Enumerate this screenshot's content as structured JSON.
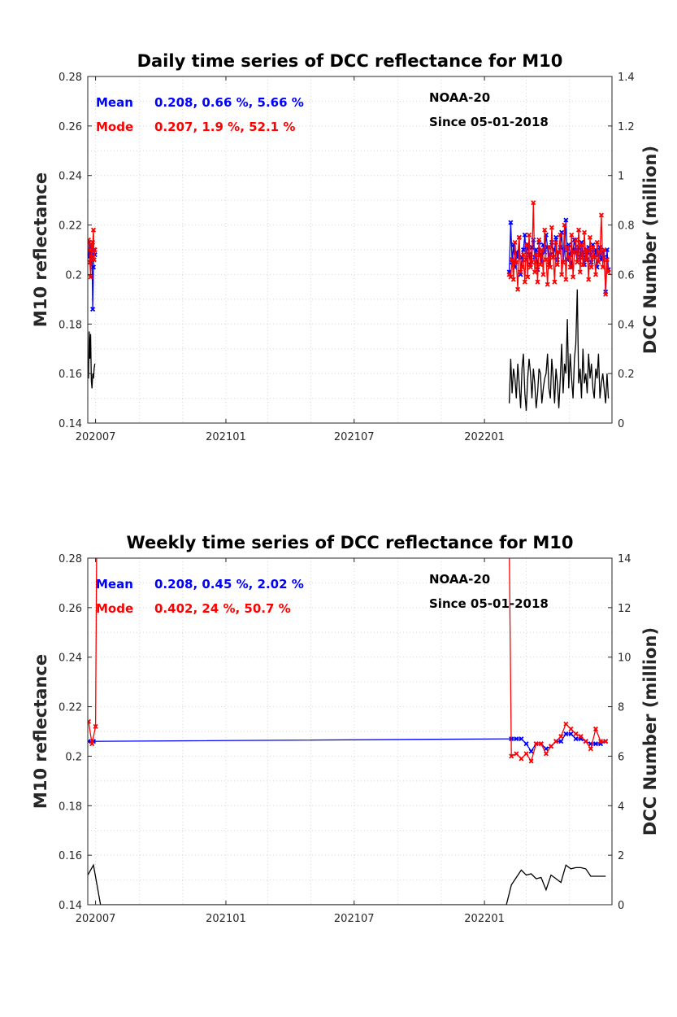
{
  "colors": {
    "mean": "#0000ff",
    "mode": "#ff0000",
    "count": "#000000"
  },
  "chart_data": [
    {
      "type": "line",
      "title": "Daily time series of DCC reflectance for M10",
      "ylabel": "M10 reflectance",
      "y2label": "DCC Number (million)",
      "x_tick_labels": [
        "202007",
        "202101",
        "202107",
        "202201"
      ],
      "x_tick_dates": [
        "2020-07-01",
        "2021-01-01",
        "2021-07-01",
        "2022-01-01"
      ],
      "xlim": [
        "2020-06-20",
        "2022-06-30"
      ],
      "ylim": [
        0.14,
        0.28
      ],
      "y_ticks": [
        0.14,
        0.16,
        0.18,
        0.2,
        0.22,
        0.24,
        0.26,
        0.28
      ],
      "y_tick_labels": [
        "0.14",
        "0.16",
        "0.18",
        "0.2",
        "0.22",
        "0.24",
        "0.26",
        "0.28"
      ],
      "y2lim": [
        0,
        1.4
      ],
      "y2_ticks": [
        0,
        0.2,
        0.4,
        0.6,
        0.8,
        1,
        1.2,
        1.4
      ],
      "y2_tick_labels": [
        "0",
        "0.2",
        "0.4",
        "0.6",
        "0.8",
        "1",
        "1.2",
        "1.4"
      ],
      "grid": true,
      "annotations": {
        "mean_label": "Mean",
        "mean_values": "0.208, 0.66 %, 5.66 %",
        "mode_label": "Mode",
        "mode_values": "0.207, 1.9 %, 52.1 %",
        "satellite": "NOAA-20",
        "since": "Since 05-01-2018"
      },
      "series": [
        {
          "name": "Mean",
          "axis": "left",
          "x": [
            "2020-06-21",
            "2020-06-22",
            "2020-06-23",
            "2020-06-24",
            "2020-06-25",
            "2020-06-26",
            "2020-06-27",
            "2020-06-28",
            "2020-06-29",
            "2020-06-30",
            "2022-02-05",
            "2022-02-07",
            "2022-02-09",
            "2022-02-11",
            "2022-02-13",
            "2022-02-15",
            "2022-02-17",
            "2022-02-19",
            "2022-02-21",
            "2022-02-23",
            "2022-02-25",
            "2022-02-27",
            "2022-03-01",
            "2022-03-03",
            "2022-03-05",
            "2022-03-07",
            "2022-03-09",
            "2022-03-11",
            "2022-03-13",
            "2022-03-15",
            "2022-03-17",
            "2022-03-19",
            "2022-03-21",
            "2022-03-23",
            "2022-03-25",
            "2022-03-27",
            "2022-03-29",
            "2022-03-31",
            "2022-04-02",
            "2022-04-04",
            "2022-04-06",
            "2022-04-08",
            "2022-04-10",
            "2022-04-12",
            "2022-04-14",
            "2022-04-16",
            "2022-04-18",
            "2022-04-20",
            "2022-04-22",
            "2022-04-24",
            "2022-04-26",
            "2022-04-28",
            "2022-04-30",
            "2022-05-02",
            "2022-05-04",
            "2022-05-06",
            "2022-05-08",
            "2022-05-10",
            "2022-05-12",
            "2022-05-14",
            "2022-05-16",
            "2022-05-18",
            "2022-05-20",
            "2022-05-22",
            "2022-05-24",
            "2022-05-26",
            "2022-05-28",
            "2022-05-30",
            "2022-06-01",
            "2022-06-03",
            "2022-06-05",
            "2022-06-07",
            "2022-06-09",
            "2022-06-11",
            "2022-06-13",
            "2022-06-15",
            "2022-06-17",
            "2022-06-19",
            "2022-06-21",
            "2022-06-23",
            "2022-06-25"
          ],
          "values": [
            0.207,
            0.213,
            0.209,
            0.205,
            0.211,
            0.208,
            0.186,
            0.203,
            0.21,
            0.208,
            0.201,
            0.221,
            0.205,
            0.212,
            0.203,
            0.209,
            0.207,
            0.215,
            0.2,
            0.207,
            0.21,
            0.216,
            0.206,
            0.212,
            0.208,
            0.204,
            0.211,
            0.214,
            0.207,
            0.21,
            0.202,
            0.213,
            0.208,
            0.205,
            0.212,
            0.209,
            0.216,
            0.211,
            0.204,
            0.208,
            0.213,
            0.207,
            0.21,
            0.215,
            0.206,
            0.209,
            0.211,
            0.217,
            0.205,
            0.21,
            0.222,
            0.206,
            0.212,
            0.208,
            0.203,
            0.21,
            0.214,
            0.209,
            0.205,
            0.211,
            0.207,
            0.213,
            0.208,
            0.204,
            0.21,
            0.206,
            0.211,
            0.209,
            0.205,
            0.212,
            0.207,
            0.21,
            0.203,
            0.208,
            0.211,
            0.206,
            0.209,
            0.207,
            0.193,
            0.21,
            0.202
          ]
        },
        {
          "name": "Mode",
          "axis": "left",
          "x": [
            "2020-06-21",
            "2020-06-22",
            "2020-06-23",
            "2020-06-24",
            "2020-06-25",
            "2020-06-26",
            "2020-06-27",
            "2020-06-28",
            "2020-06-29",
            "2020-06-30",
            "2022-02-05",
            "2022-02-07",
            "2022-02-09",
            "2022-02-11",
            "2022-02-13",
            "2022-02-15",
            "2022-02-17",
            "2022-02-19",
            "2022-02-21",
            "2022-02-23",
            "2022-02-25",
            "2022-02-27",
            "2022-03-01",
            "2022-03-03",
            "2022-03-05",
            "2022-03-07",
            "2022-03-09",
            "2022-03-11",
            "2022-03-13",
            "2022-03-15",
            "2022-03-17",
            "2022-03-19",
            "2022-03-21",
            "2022-03-23",
            "2022-03-25",
            "2022-03-27",
            "2022-03-29",
            "2022-03-31",
            "2022-04-02",
            "2022-04-04",
            "2022-04-06",
            "2022-04-08",
            "2022-04-10",
            "2022-04-12",
            "2022-04-14",
            "2022-04-16",
            "2022-04-18",
            "2022-04-20",
            "2022-04-22",
            "2022-04-24",
            "2022-04-26",
            "2022-04-28",
            "2022-04-30",
            "2022-05-02",
            "2022-05-04",
            "2022-05-06",
            "2022-05-08",
            "2022-05-10",
            "2022-05-12",
            "2022-05-14",
            "2022-05-16",
            "2022-05-18",
            "2022-05-20",
            "2022-05-22",
            "2022-05-24",
            "2022-05-26",
            "2022-05-28",
            "2022-05-30",
            "2022-06-01",
            "2022-06-03",
            "2022-06-05",
            "2022-06-07",
            "2022-06-09",
            "2022-06-11",
            "2022-06-13",
            "2022-06-15",
            "2022-06-17",
            "2022-06-19",
            "2022-06-21",
            "2022-06-23",
            "2022-06-25"
          ],
          "values": [
            0.214,
            0.21,
            0.205,
            0.199,
            0.212,
            0.207,
            0.213,
            0.218,
            0.206,
            0.21,
            0.2,
            0.199,
            0.206,
            0.198,
            0.213,
            0.205,
            0.194,
            0.215,
            0.201,
            0.203,
            0.208,
            0.197,
            0.212,
            0.199,
            0.216,
            0.203,
            0.205,
            0.229,
            0.201,
            0.208,
            0.197,
            0.214,
            0.204,
            0.21,
            0.2,
            0.218,
            0.206,
            0.196,
            0.211,
            0.203,
            0.219,
            0.207,
            0.197,
            0.213,
            0.204,
            0.209,
            0.216,
            0.2,
            0.205,
            0.22,
            0.198,
            0.211,
            0.207,
            0.203,
            0.216,
            0.199,
            0.209,
            0.214,
            0.205,
            0.218,
            0.201,
            0.212,
            0.204,
            0.217,
            0.206,
            0.21,
            0.198,
            0.215,
            0.203,
            0.211,
            0.207,
            0.2,
            0.213,
            0.205,
            0.209,
            0.224,
            0.203,
            0.21,
            0.192,
            0.206,
            0.201
          ]
        },
        {
          "name": "DCC Number",
          "axis": "right",
          "x": [
            "2020-06-21",
            "2020-06-22",
            "2020-06-23",
            "2020-06-24",
            "2020-06-25",
            "2020-06-26",
            "2020-06-27",
            "2020-06-28",
            "2020-06-29",
            "2020-06-30",
            "2022-02-05",
            "2022-02-07",
            "2022-02-09",
            "2022-02-11",
            "2022-02-13",
            "2022-02-15",
            "2022-02-17",
            "2022-02-19",
            "2022-02-21",
            "2022-02-23",
            "2022-02-25",
            "2022-02-27",
            "2022-03-01",
            "2022-03-03",
            "2022-03-05",
            "2022-03-07",
            "2022-03-09",
            "2022-03-11",
            "2022-03-13",
            "2022-03-15",
            "2022-03-17",
            "2022-03-19",
            "2022-03-21",
            "2022-03-23",
            "2022-03-25",
            "2022-03-27",
            "2022-03-29",
            "2022-03-31",
            "2022-04-02",
            "2022-04-04",
            "2022-04-06",
            "2022-04-08",
            "2022-04-10",
            "2022-04-12",
            "2022-04-14",
            "2022-04-16",
            "2022-04-18",
            "2022-04-20",
            "2022-04-22",
            "2022-04-24",
            "2022-04-26",
            "2022-04-28",
            "2022-04-30",
            "2022-05-02",
            "2022-05-04",
            "2022-05-06",
            "2022-05-08",
            "2022-05-10",
            "2022-05-12",
            "2022-05-14",
            "2022-05-16",
            "2022-05-18",
            "2022-05-20",
            "2022-05-22",
            "2022-05-24",
            "2022-05-26",
            "2022-05-28",
            "2022-05-30",
            "2022-06-01",
            "2022-06-03",
            "2022-06-05",
            "2022-06-07",
            "2022-06-09",
            "2022-06-11",
            "2022-06-13",
            "2022-06-15",
            "2022-06-17",
            "2022-06-19",
            "2022-06-21",
            "2022-06-23",
            "2022-06-25"
          ],
          "values": [
            0.18,
            0.37,
            0.26,
            0.36,
            0.17,
            0.14,
            0.2,
            0.18,
            0.22,
            0.24,
            0.08,
            0.26,
            0.12,
            0.22,
            0.18,
            0.1,
            0.24,
            0.16,
            0.06,
            0.22,
            0.28,
            0.12,
            0.05,
            0.18,
            0.26,
            0.2,
            0.1,
            0.22,
            0.16,
            0.06,
            0.12,
            0.22,
            0.2,
            0.08,
            0.14,
            0.18,
            0.2,
            0.28,
            0.14,
            0.1,
            0.26,
            0.18,
            0.08,
            0.22,
            0.16,
            0.06,
            0.18,
            0.32,
            0.12,
            0.24,
            0.2,
            0.42,
            0.14,
            0.28,
            0.18,
            0.1,
            0.26,
            0.32,
            0.54,
            0.16,
            0.22,
            0.1,
            0.3,
            0.16,
            0.2,
            0.12,
            0.28,
            0.18,
            0.24,
            0.14,
            0.1,
            0.22,
            0.18,
            0.28,
            0.1,
            0.16,
            0.2,
            0.14,
            0.08,
            0.2,
            0.1
          ]
        }
      ]
    },
    {
      "type": "line",
      "title": "Weekly time series of DCC reflectance for M10",
      "ylabel": "M10 reflectance",
      "y2label": "DCC Number (million)",
      "x_tick_labels": [
        "202007",
        "202101",
        "202107",
        "202201"
      ],
      "x_tick_dates": [
        "2020-07-01",
        "2021-01-01",
        "2021-07-01",
        "2022-01-01"
      ],
      "xlim": [
        "2020-06-20",
        "2022-06-30"
      ],
      "ylim": [
        0.14,
        0.28
      ],
      "y_ticks": [
        0.14,
        0.16,
        0.18,
        0.2,
        0.22,
        0.24,
        0.26,
        0.28
      ],
      "y_tick_labels": [
        "0.14",
        "0.16",
        "0.18",
        "0.2",
        "0.22",
        "0.24",
        "0.26",
        "0.28"
      ],
      "y2lim": [
        0,
        14
      ],
      "y2_ticks": [
        0,
        2,
        4,
        6,
        8,
        10,
        12,
        14
      ],
      "y2_tick_labels": [
        "0",
        "2",
        "4",
        "6",
        "8",
        "10",
        "12",
        "14"
      ],
      "grid": true,
      "annotations": {
        "mean_label": "Mean",
        "mean_values": "0.208, 0.45 %, 2.02 %",
        "mode_label": "Mode",
        "mode_values": "0.402, 24 %, 50.7 %",
        "satellite": "NOAA-20",
        "since": "Since 05-01-2018"
      },
      "series": [
        {
          "name": "Mean",
          "axis": "left",
          "x": [
            "2020-06-21",
            "2020-06-28",
            "2022-02-08",
            "2022-02-15",
            "2022-02-22",
            "2022-03-01",
            "2022-03-08",
            "2022-03-15",
            "2022-03-22",
            "2022-03-29",
            "2022-04-05",
            "2022-04-12",
            "2022-04-19",
            "2022-04-26",
            "2022-05-03",
            "2022-05-10",
            "2022-05-17",
            "2022-05-24",
            "2022-05-31",
            "2022-06-07",
            "2022-06-14",
            "2022-06-21"
          ],
          "values": [
            0.206,
            0.206,
            0.207,
            0.207,
            0.207,
            0.205,
            0.202,
            0.205,
            0.205,
            0.203,
            0.204,
            0.206,
            0.206,
            0.209,
            0.209,
            0.207,
            0.207,
            0.206,
            0.205,
            0.205,
            0.205,
            0.206
          ]
        },
        {
          "name": "Mode",
          "axis": "left",
          "x": [
            "2020-06-21",
            "2020-06-26",
            "2020-07-01",
            "2020-07-05",
            "2022-02-01",
            "2022-02-08",
            "2022-02-15",
            "2022-02-22",
            "2022-03-01",
            "2022-03-08",
            "2022-03-15",
            "2022-03-22",
            "2022-03-29",
            "2022-04-05",
            "2022-04-12",
            "2022-04-19",
            "2022-04-26",
            "2022-05-03",
            "2022-05-10",
            "2022-05-17",
            "2022-05-24",
            "2022-05-31",
            "2022-06-07",
            "2022-06-14",
            "2022-06-21"
          ],
          "values": [
            0.214,
            0.205,
            0.212,
            0.4,
            0.4,
            0.2,
            0.201,
            0.199,
            0.201,
            0.198,
            0.205,
            0.205,
            0.201,
            0.204,
            0.206,
            0.208,
            0.213,
            0.211,
            0.209,
            0.208,
            0.206,
            0.203,
            0.211,
            0.206,
            0.206
          ]
        },
        {
          "name": "DCC Number",
          "axis": "right",
          "x": [
            "2020-06-20",
            "2020-06-28",
            "2020-07-08",
            "2020-07-15",
            "2022-02-01",
            "2022-02-08",
            "2022-02-15",
            "2022-02-22",
            "2022-03-01",
            "2022-03-08",
            "2022-03-15",
            "2022-03-22",
            "2022-03-29",
            "2022-04-05",
            "2022-04-12",
            "2022-04-19",
            "2022-04-26",
            "2022-05-03",
            "2022-05-10",
            "2022-05-17",
            "2022-05-24",
            "2022-05-31",
            "2022-06-07",
            "2022-06-14",
            "2022-06-21"
          ],
          "values": [
            1.2,
            1.6,
            0,
            0,
            0,
            0.8,
            1.1,
            1.4,
            1.2,
            1.25,
            1.05,
            1.1,
            0.6,
            1.2,
            1.05,
            0.9,
            1.6,
            1.45,
            1.5,
            1.5,
            1.45,
            1.15,
            1.15,
            1.15,
            1.15
          ]
        }
      ]
    }
  ]
}
